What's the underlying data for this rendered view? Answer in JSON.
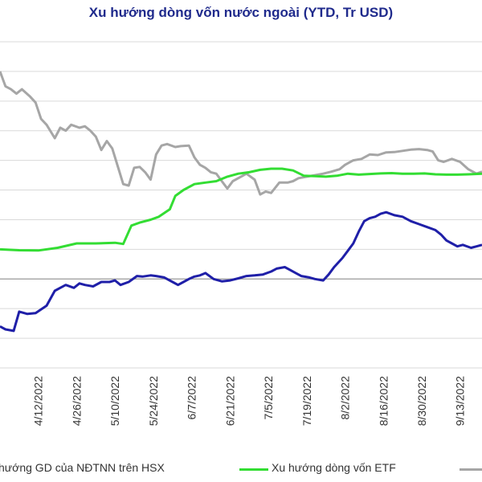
{
  "chart_data": {
    "type": "line",
    "title": "Xu hướng dòng vốn nước ngoài (YTD, Tr USD)",
    "xlabel": "",
    "ylabel": "",
    "x_range": [
      "2022-03-29",
      "2022-09-21"
    ],
    "y_range_visible": [
      -300,
      800
    ],
    "grid": "horizontal",
    "x_tick_labels": [
      "4/12/2022",
      "4/26/2022",
      "5/10/2022",
      "5/24/2022",
      "6/7/2022",
      "6/21/2022",
      "7/5/2022",
      "7/19/2022",
      "8/2/2022",
      "8/16/2022",
      "8/30/2022",
      "9/13/2022"
    ],
    "legend_position": "bottom",
    "series": [
      {
        "name": "hướng GD của NĐTNN trên HSX",
        "color": "#1f1fa8",
        "points": [
          [
            "2022-03-29",
            -160
          ],
          [
            "2022-03-31",
            -170
          ],
          [
            "2022-04-03",
            -175
          ],
          [
            "2022-04-05",
            -110
          ],
          [
            "2022-04-08",
            -118
          ],
          [
            "2022-04-11",
            -115
          ],
          [
            "2022-04-15",
            -90
          ],
          [
            "2022-04-18",
            -40
          ],
          [
            "2022-04-20",
            -30
          ],
          [
            "2022-04-22",
            -20
          ],
          [
            "2022-04-25",
            -30
          ],
          [
            "2022-04-27",
            -15
          ],
          [
            "2022-04-29",
            -20
          ],
          [
            "2022-05-02",
            -25
          ],
          [
            "2022-05-05",
            -10
          ],
          [
            "2022-05-08",
            -10
          ],
          [
            "2022-05-10",
            -5
          ],
          [
            "2022-05-12",
            -20
          ],
          [
            "2022-05-15",
            -10
          ],
          [
            "2022-05-18",
            10
          ],
          [
            "2022-05-20",
            8
          ],
          [
            "2022-05-23",
            12
          ],
          [
            "2022-05-25",
            10
          ],
          [
            "2022-05-28",
            5
          ],
          [
            "2022-05-31",
            -10
          ],
          [
            "2022-06-02",
            -20
          ],
          [
            "2022-06-04",
            -10
          ],
          [
            "2022-06-06",
            0
          ],
          [
            "2022-06-08",
            8
          ],
          [
            "2022-06-10",
            12
          ],
          [
            "2022-06-12",
            20
          ],
          [
            "2022-06-15",
            0
          ],
          [
            "2022-06-18",
            -8
          ],
          [
            "2022-06-21",
            -5
          ],
          [
            "2022-06-24",
            2
          ],
          [
            "2022-06-27",
            10
          ],
          [
            "2022-06-30",
            12
          ],
          [
            "2022-07-03",
            15
          ],
          [
            "2022-07-06",
            25
          ],
          [
            "2022-07-08",
            35
          ],
          [
            "2022-07-11",
            40
          ],
          [
            "2022-07-13",
            30
          ],
          [
            "2022-07-15",
            20
          ],
          [
            "2022-07-17",
            10
          ],
          [
            "2022-07-20",
            5
          ],
          [
            "2022-07-22",
            0
          ],
          [
            "2022-07-25",
            -5
          ],
          [
            "2022-07-27",
            15
          ],
          [
            "2022-07-29",
            40
          ],
          [
            "2022-08-01",
            70
          ],
          [
            "2022-08-03",
            95
          ],
          [
            "2022-08-05",
            120
          ],
          [
            "2022-08-07",
            160
          ],
          [
            "2022-08-09",
            195
          ],
          [
            "2022-08-11",
            205
          ],
          [
            "2022-08-13",
            210
          ],
          [
            "2022-08-15",
            220
          ],
          [
            "2022-08-17",
            225
          ],
          [
            "2022-08-20",
            215
          ],
          [
            "2022-08-23",
            210
          ],
          [
            "2022-08-26",
            195
          ],
          [
            "2022-08-29",
            185
          ],
          [
            "2022-09-01",
            175
          ],
          [
            "2022-09-04",
            165
          ],
          [
            "2022-09-06",
            150
          ],
          [
            "2022-09-08",
            130
          ],
          [
            "2022-09-10",
            120
          ],
          [
            "2022-09-12",
            110
          ],
          [
            "2022-09-14",
            115
          ],
          [
            "2022-09-17",
            105
          ],
          [
            "2022-09-19",
            110
          ],
          [
            "2022-09-21",
            115
          ]
        ]
      },
      {
        "name": "Xu hướng dòng vốn ETF",
        "color": "#33dd33",
        "points": [
          [
            "2022-03-29",
            100
          ],
          [
            "2022-04-05",
            97
          ],
          [
            "2022-04-12",
            96
          ],
          [
            "2022-04-19",
            105
          ],
          [
            "2022-04-26",
            120
          ],
          [
            "2022-05-03",
            120
          ],
          [
            "2022-05-10",
            122
          ],
          [
            "2022-05-13",
            118
          ],
          [
            "2022-05-16",
            180
          ],
          [
            "2022-05-19",
            190
          ],
          [
            "2022-05-23",
            200
          ],
          [
            "2022-05-26",
            210
          ],
          [
            "2022-05-30",
            235
          ],
          [
            "2022-06-01",
            280
          ],
          [
            "2022-06-04",
            300
          ],
          [
            "2022-06-08",
            320
          ],
          [
            "2022-06-12",
            325
          ],
          [
            "2022-06-16",
            330
          ],
          [
            "2022-06-20",
            345
          ],
          [
            "2022-06-24",
            355
          ],
          [
            "2022-06-28",
            360
          ],
          [
            "2022-07-02",
            368
          ],
          [
            "2022-07-06",
            372
          ],
          [
            "2022-07-10",
            372
          ],
          [
            "2022-07-14",
            366
          ],
          [
            "2022-07-18",
            348
          ],
          [
            "2022-07-22",
            347
          ],
          [
            "2022-07-26",
            345
          ],
          [
            "2022-07-30",
            348
          ],
          [
            "2022-08-03",
            355
          ],
          [
            "2022-08-07",
            352
          ],
          [
            "2022-08-11",
            354
          ],
          [
            "2022-08-15",
            356
          ],
          [
            "2022-08-19",
            357
          ],
          [
            "2022-08-23",
            355
          ],
          [
            "2022-08-27",
            355
          ],
          [
            "2022-08-31",
            356
          ],
          [
            "2022-09-04",
            353
          ],
          [
            "2022-09-08",
            352
          ],
          [
            "2022-09-12",
            352
          ],
          [
            "2022-09-16",
            353
          ],
          [
            "2022-09-21",
            355
          ]
        ]
      },
      {
        "name": "",
        "color": "#a6a6a6",
        "points": [
          [
            "2022-03-29",
            700
          ],
          [
            "2022-03-31",
            650
          ],
          [
            "2022-04-02",
            640
          ],
          [
            "2022-04-04",
            625
          ],
          [
            "2022-04-06",
            640
          ],
          [
            "2022-04-09",
            615
          ],
          [
            "2022-04-11",
            595
          ],
          [
            "2022-04-13",
            540
          ],
          [
            "2022-04-15",
            520
          ],
          [
            "2022-04-18",
            475
          ],
          [
            "2022-04-20",
            510
          ],
          [
            "2022-04-22",
            500
          ],
          [
            "2022-04-24",
            520
          ],
          [
            "2022-04-27",
            510
          ],
          [
            "2022-04-29",
            515
          ],
          [
            "2022-05-01",
            500
          ],
          [
            "2022-05-03",
            480
          ],
          [
            "2022-05-05",
            435
          ],
          [
            "2022-05-07",
            465
          ],
          [
            "2022-05-09",
            440
          ],
          [
            "2022-05-11",
            380
          ],
          [
            "2022-05-13",
            320
          ],
          [
            "2022-05-15",
            315
          ],
          [
            "2022-05-17",
            375
          ],
          [
            "2022-05-19",
            378
          ],
          [
            "2022-05-21",
            360
          ],
          [
            "2022-05-23",
            335
          ],
          [
            "2022-05-25",
            420
          ],
          [
            "2022-05-27",
            450
          ],
          [
            "2022-05-29",
            455
          ],
          [
            "2022-06-01",
            445
          ],
          [
            "2022-06-03",
            448
          ],
          [
            "2022-06-06",
            450
          ],
          [
            "2022-06-08",
            410
          ],
          [
            "2022-06-10",
            385
          ],
          [
            "2022-06-12",
            375
          ],
          [
            "2022-06-14",
            360
          ],
          [
            "2022-06-16",
            355
          ],
          [
            "2022-06-18",
            330
          ],
          [
            "2022-06-20",
            305
          ],
          [
            "2022-06-22",
            330
          ],
          [
            "2022-06-25",
            345
          ],
          [
            "2022-06-27",
            355
          ],
          [
            "2022-06-30",
            335
          ],
          [
            "2022-07-02",
            285
          ],
          [
            "2022-07-04",
            295
          ],
          [
            "2022-07-06",
            290
          ],
          [
            "2022-07-09",
            325
          ],
          [
            "2022-07-12",
            325
          ],
          [
            "2022-07-14",
            330
          ],
          [
            "2022-07-16",
            340
          ],
          [
            "2022-07-19",
            345
          ],
          [
            "2022-07-22",
            350
          ],
          [
            "2022-07-25",
            355
          ],
          [
            "2022-07-28",
            362
          ],
          [
            "2022-07-31",
            370
          ],
          [
            "2022-08-02",
            385
          ],
          [
            "2022-08-05",
            400
          ],
          [
            "2022-08-08",
            405
          ],
          [
            "2022-08-11",
            420
          ],
          [
            "2022-08-14",
            418
          ],
          [
            "2022-08-17",
            427
          ],
          [
            "2022-08-20",
            428
          ],
          [
            "2022-08-23",
            432
          ],
          [
            "2022-08-26",
            436
          ],
          [
            "2022-08-29",
            438
          ],
          [
            "2022-09-01",
            435
          ],
          [
            "2022-09-03",
            430
          ],
          [
            "2022-09-05",
            400
          ],
          [
            "2022-09-07",
            395
          ],
          [
            "2022-09-10",
            405
          ],
          [
            "2022-09-13",
            395
          ],
          [
            "2022-09-16",
            370
          ],
          [
            "2022-09-19",
            355
          ],
          [
            "2022-09-21",
            362
          ]
        ]
      }
    ]
  }
}
